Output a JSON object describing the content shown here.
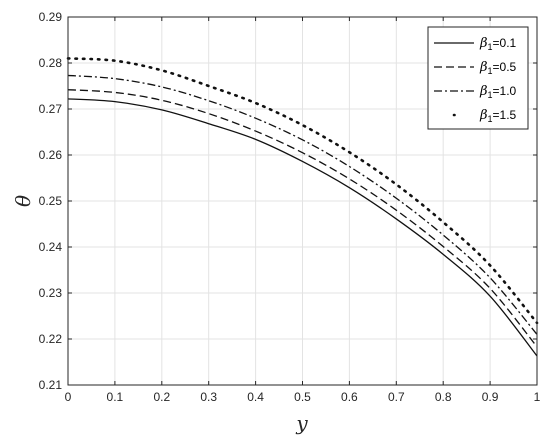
{
  "chart_data": {
    "type": "line",
    "xlabel": "y",
    "ylabel": "θ",
    "xlim": [
      0,
      1
    ],
    "ylim": [
      0.21,
      0.29
    ],
    "xticks": [
      "0",
      "0.1",
      "0.2",
      "0.3",
      "0.4",
      "0.5",
      "0.6",
      "0.7",
      "0.8",
      "0.9",
      "1"
    ],
    "yticks": [
      "0.21",
      "0.22",
      "0.23",
      "0.24",
      "0.25",
      "0.26",
      "0.27",
      "0.28",
      "0.29"
    ],
    "grid": true,
    "legend_position": "top-right",
    "x": [
      0,
      0.1,
      0.2,
      0.3,
      0.4,
      0.5,
      0.6,
      0.7,
      0.8,
      0.9,
      1.0
    ],
    "series": [
      {
        "symbol": "β",
        "subscript": "1",
        "value_label": "=0.1",
        "style": "solid",
        "values": [
          0.2722,
          0.2716,
          0.2698,
          0.2668,
          0.2634,
          0.2586,
          0.2529,
          0.2461,
          0.2384,
          0.2293,
          0.2163
        ]
      },
      {
        "symbol": "β",
        "subscript": "1",
        "value_label": "=0.5",
        "style": "dashed",
        "values": [
          0.2742,
          0.2736,
          0.2719,
          0.269,
          0.2652,
          0.2605,
          0.2548,
          0.248,
          0.2401,
          0.231,
          0.2183
        ]
      },
      {
        "symbol": "β",
        "subscript": "1",
        "value_label": "=1.0",
        "style": "dashdot",
        "values": [
          0.2773,
          0.2766,
          0.2748,
          0.2718,
          0.268,
          0.2633,
          0.2575,
          0.2506,
          0.2426,
          0.2333,
          0.221
        ]
      },
      {
        "symbol": "β",
        "subscript": "1",
        "value_label": "=1.5",
        "style": "dotted",
        "values": [
          0.281,
          0.2805,
          0.2784,
          0.275,
          0.2713,
          0.2665,
          0.2606,
          0.2536,
          0.2454,
          0.236,
          0.2235
        ]
      }
    ]
  }
}
